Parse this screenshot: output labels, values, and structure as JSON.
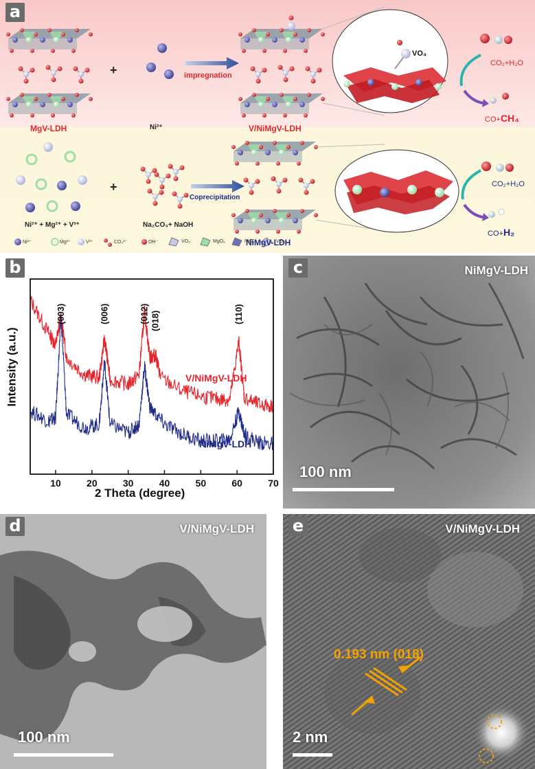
{
  "panel_a": {
    "label": "a",
    "row1": {
      "left_caption": "MgV-LDH",
      "ni_label": "Ni²⁺",
      "plus": "+",
      "arrow_label": "impregnation",
      "product_caption": "V/NiMgV-LDH",
      "zoom_label": "VO₄",
      "reaction_top": "CO₂+H₂O",
      "reaction_bottom_prefix": "CO+",
      "reaction_bottom_strong": "CH₄"
    },
    "row2": {
      "ions_caption": "Ni²⁺ + Mg²⁺ + V³⁺",
      "plus": "+",
      "reagent_caption": "Na₂CO₃+ NaOH",
      "arrow_label": "Coprecipitation",
      "product_caption": "NiMgV-LDH",
      "reaction_top": "CO₂+H₂O",
      "reaction_bottom_prefix": "CO+",
      "reaction_bottom_strong": "H₂"
    },
    "legend": [
      "Ni²⁺",
      "Mg²⁺",
      "V³⁺",
      "CO₃²⁻",
      "OH⁻",
      "VO₆",
      "MgO₆",
      "NiO₆",
      "VO₄"
    ]
  },
  "panel_b": {
    "label": "b",
    "chart_data": {
      "type": "line",
      "xlabel": "2 Theta (degree)",
      "ylabel": "Intensity (a.u.)",
      "xlim": [
        3,
        70
      ],
      "xticks": [
        10,
        20,
        30,
        40,
        50,
        60,
        70
      ],
      "grid": false,
      "peak_labels": [
        {
          "text": "(003)",
          "x": 11.5
        },
        {
          "text": "(006)",
          "x": 23.5
        },
        {
          "text": "(012)",
          "x": 34.5
        },
        {
          "text": "(018)",
          "x": 37.5
        },
        {
          "text": "(110)",
          "x": 60.5
        }
      ],
      "series": [
        {
          "name": "V/NiMgV-LDH",
          "color": "#e8232a",
          "x": [
            3,
            8,
            10,
            11.5,
            13,
            18,
            22,
            23.5,
            25,
            30,
            33,
            34.5,
            36,
            37.5,
            39,
            45,
            50,
            55,
            58,
            60.5,
            62,
            66,
            70
          ],
          "y": [
            1.05,
            0.85,
            0.78,
            0.95,
            0.7,
            0.6,
            0.58,
            0.82,
            0.57,
            0.54,
            0.6,
            0.98,
            0.7,
            0.72,
            0.58,
            0.5,
            0.47,
            0.45,
            0.45,
            0.8,
            0.46,
            0.42,
            0.41
          ]
        },
        {
          "name": "NiMgV-LDH",
          "color": "#1f2b8a",
          "x": [
            3,
            8,
            10,
            11.5,
            13,
            18,
            22,
            23.5,
            25,
            30,
            33,
            34.5,
            36,
            40,
            45,
            50,
            55,
            58,
            60.5,
            62,
            66,
            70
          ],
          "y": [
            0.38,
            0.32,
            0.34,
            0.95,
            0.36,
            0.28,
            0.3,
            0.68,
            0.3,
            0.25,
            0.3,
            0.65,
            0.4,
            0.3,
            0.24,
            0.2,
            0.2,
            0.21,
            0.38,
            0.24,
            0.19,
            0.18
          ]
        }
      ]
    }
  },
  "panel_c": {
    "label": "c",
    "sample": "NiMgV-LDH",
    "scale": "100 nm"
  },
  "panel_d": {
    "label": "d",
    "sample": "V/NiMgV-LDH",
    "scale": "100 nm"
  },
  "panel_e": {
    "label": "e",
    "sample": "V/NiMgV-LDH",
    "scale": "2 nm",
    "annotation": "0.193 nm (018)"
  },
  "colors": {
    "red": "#e8232a",
    "blue": "#1f2b8a",
    "orange": "#f4a200",
    "nickel": "#6d6fb8",
    "magnesium": "#9fe0a7",
    "vanadium": "#c9c9e6",
    "oxygen": "#d9232a"
  }
}
